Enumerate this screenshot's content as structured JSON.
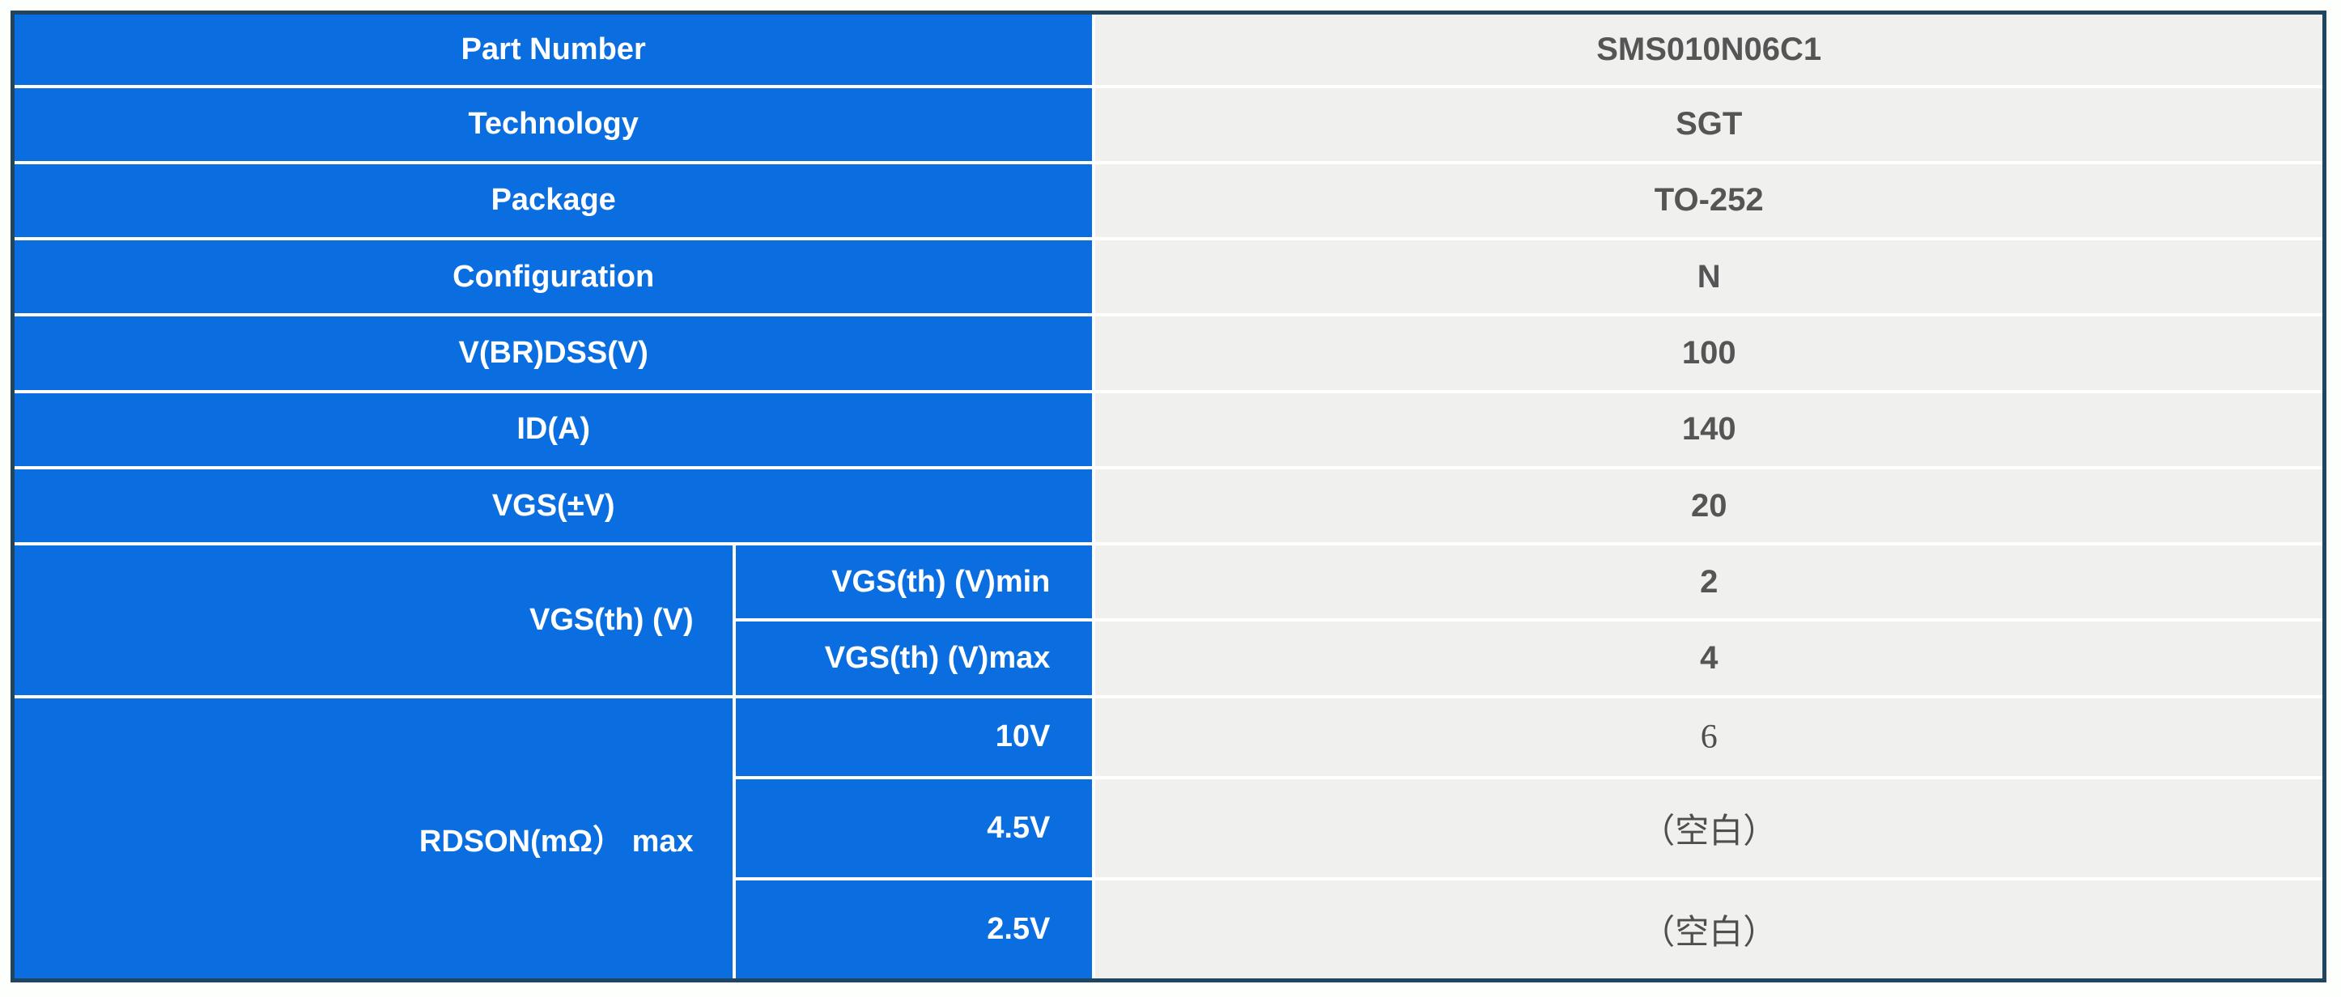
{
  "table": {
    "rows": [
      {
        "label": "Part Number",
        "value": "SMS010N06C1"
      },
      {
        "label": "Technology",
        "value": "SGT"
      },
      {
        "label": "Package",
        "value": "TO-252"
      },
      {
        "label": "Configuration",
        "value": "N"
      },
      {
        "label": "V(BR)DSS(V)",
        "value": "100"
      },
      {
        "label": "ID(A)",
        "value": "140"
      },
      {
        "label": "VGS(±V)",
        "value": "20"
      }
    ],
    "groups": [
      {
        "label": "VGS(th) (V)",
        "subrows": [
          {
            "sublabel": "VGS(th) (V)min",
            "value": "2"
          },
          {
            "sublabel": "VGS(th) (V)max",
            "value": "4"
          }
        ]
      },
      {
        "label": "RDSON(mΩ） max",
        "subrows": [
          {
            "sublabel": "10V",
            "value": "6"
          },
          {
            "sublabel": "4.5V",
            "value": "（空白）"
          },
          {
            "sublabel": "2.5V",
            "value": "（空白）"
          }
        ]
      }
    ],
    "colors": {
      "label_blue": "#0a6ee0",
      "border_navy": "#20455e",
      "value_gray_bg": "#f0f0ee",
      "value_text": "#555555",
      "gridline": "#ffffff",
      "label_text": "#ffffff"
    }
  }
}
